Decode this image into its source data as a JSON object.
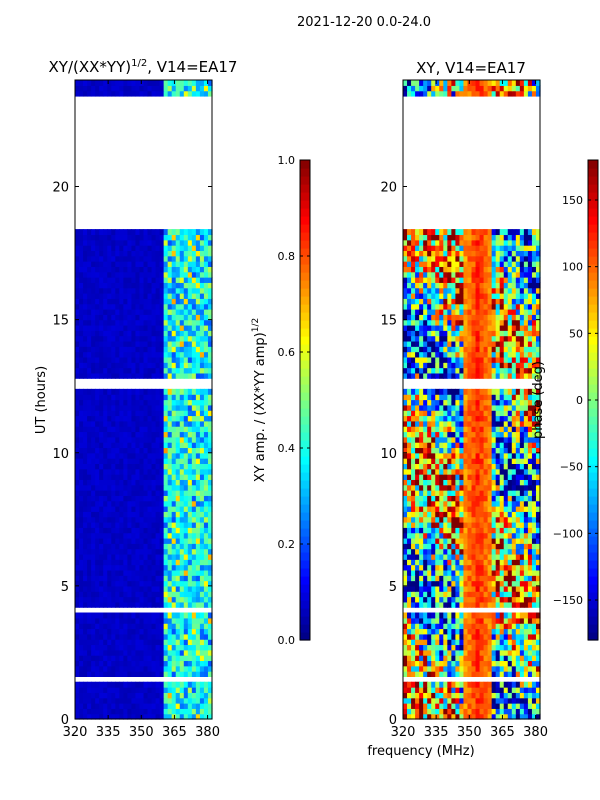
{
  "figure": {
    "suptitle": "2021-12-20 0.0-24.0"
  },
  "chart_data": [
    {
      "type": "heatmap",
      "title": "XY/(XX*YY)",
      "title_superscript": "1/2",
      "title_suffix": ", V14=EA17",
      "xlabel": "",
      "ylabel": "UT (hours)",
      "xlim": [
        320,
        382
      ],
      "ylim": [
        0,
        24
      ],
      "xticks": [
        320,
        335,
        350,
        365,
        380
      ],
      "yticks": [
        0,
        5,
        10,
        15,
        20
      ],
      "grid": false,
      "colorbar": {
        "label": "XY amp. / (XX*YY amp)",
        "label_superscript": "1/2",
        "range": [
          0.0,
          1.0
        ],
        "ticks": [
          "0.0",
          "0.2",
          "0.4",
          "0.6",
          "0.8",
          "1.0"
        ],
        "tick_values": [
          0.0,
          0.2,
          0.4,
          0.6,
          0.8,
          1.0
        ],
        "colormap": "jet"
      },
      "flagged_hours": [
        [
          18.5,
          23.4
        ],
        [
          20.0,
          20.1
        ],
        [
          19.85,
          19.9
        ],
        [
          12.45,
          12.75
        ],
        [
          4.05,
          4.15
        ],
        [
          2.15,
          2.25
        ],
        [
          1.45,
          1.55
        ],
        [
          0.4,
          0.45
        ]
      ],
      "bright_band_mhz": [
        360,
        382
      ],
      "background_level": 0.05
    },
    {
      "type": "heatmap",
      "title": "XY, V14=EA17",
      "xlabel": "frequency (MHz)",
      "ylabel": "",
      "xlim": [
        320,
        382
      ],
      "ylim": [
        0,
        24
      ],
      "xticks": [
        320,
        335,
        350,
        365,
        380
      ],
      "yticks": [
        0,
        5,
        10,
        15,
        20
      ],
      "grid": false,
      "colorbar": {
        "label": "phase (deg)",
        "range": [
          -180,
          180
        ],
        "ticks": [
          "−150",
          "−100",
          "−50",
          "0",
          "50",
          "100",
          "150"
        ],
        "tick_values": [
          -150,
          -100,
          -50,
          0,
          50,
          100,
          150
        ],
        "colormap": "jet"
      },
      "flagged_hours": [
        [
          18.5,
          23.4
        ],
        [
          20.0,
          20.1
        ],
        [
          19.85,
          19.9
        ],
        [
          12.45,
          12.75
        ],
        [
          4.05,
          4.15
        ],
        [
          2.15,
          2.25
        ],
        [
          1.45,
          1.55
        ],
        [
          0.4,
          0.45
        ]
      ],
      "phase_ridge_mhz": 354,
      "phase_ridge_deg": 120
    }
  ]
}
